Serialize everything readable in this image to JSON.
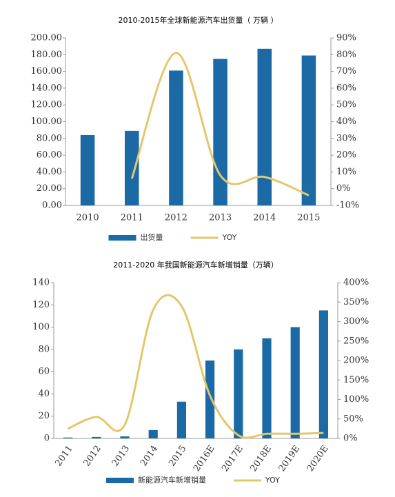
{
  "chart_data": [
    {
      "type": "bar",
      "title": "2010-2015年全球新能源汽车出货量（ 万辆 ）",
      "categories": [
        "2010",
        "2011",
        "2012",
        "2013",
        "2014",
        "2015"
      ],
      "series": [
        {
          "name": "出货量",
          "color": "#1b6aa5",
          "type": "bar",
          "values": [
            84,
            89,
            161,
            175,
            187,
            179
          ]
        },
        {
          "name": "YOY",
          "color": "#e3c76b",
          "type": "line",
          "axis": "y2",
          "values": [
            null,
            6,
            81,
            8,
            7,
            -4
          ]
        }
      ],
      "ylim": [
        0,
        200
      ],
      "yticks": [
        {
          "value": 0,
          "label": "0.00"
        },
        {
          "value": 20,
          "label": "20.00"
        },
        {
          "value": 40,
          "label": "40.00"
        },
        {
          "value": 60,
          "label": "60.00"
        },
        {
          "value": 80,
          "label": "80.00"
        },
        {
          "value": 100,
          "label": "100.00"
        },
        {
          "value": 120,
          "label": "120.00"
        },
        {
          "value": 140,
          "label": "140.00"
        },
        {
          "value": 160,
          "label": "160.00"
        },
        {
          "value": 180,
          "label": "180.00"
        },
        {
          "value": 200,
          "label": "200.00"
        }
      ],
      "y2lim": [
        -10,
        90
      ],
      "y2ticks": [
        {
          "value": -10,
          "label": "-10%"
        },
        {
          "value": 0,
          "label": "0%"
        },
        {
          "value": 10,
          "label": "10%"
        },
        {
          "value": 20,
          "label": "20%"
        },
        {
          "value": 30,
          "label": "30%"
        },
        {
          "value": 40,
          "label": "40%"
        },
        {
          "value": 50,
          "label": "50%"
        },
        {
          "value": 60,
          "label": "60%"
        },
        {
          "value": 70,
          "label": "70%"
        },
        {
          "value": 80,
          "label": "80%"
        },
        {
          "value": 90,
          "label": "90%"
        }
      ],
      "legend": "bottom"
    },
    {
      "type": "bar",
      "title": "2011-2020 年我国新能源汽车新增销量（万辆）",
      "categories": [
        "2011",
        "2012",
        "2013",
        "2014",
        "2015",
        "2016E",
        "2017E",
        "2018E",
        "2019E",
        "2020E"
      ],
      "series": [
        {
          "name": "新能源汽车新增销量",
          "color": "#1b6aa5",
          "type": "bar",
          "values": [
            0.8,
            1.3,
            1.8,
            7.5,
            33,
            70,
            80,
            90,
            100,
            115
          ]
        },
        {
          "name": "YOY",
          "color": "#e3c76b",
          "type": "line",
          "axis": "y2",
          "values": [
            25,
            55,
            35,
            330,
            340,
            110,
            8,
            12,
            12,
            14
          ]
        }
      ],
      "ylim": [
        0,
        140
      ],
      "yticks": [
        0,
        20,
        40,
        60,
        80,
        100,
        120,
        140
      ],
      "y2lim": [
        0,
        400
      ],
      "y2ticks": [
        {
          "value": 0,
          "label": "0%"
        },
        {
          "value": 50,
          "label": "50%"
        },
        {
          "value": 100,
          "label": "100%"
        },
        {
          "value": 150,
          "label": "150%"
        },
        {
          "value": 200,
          "label": "200%"
        },
        {
          "value": 250,
          "label": "250%"
        },
        {
          "value": 300,
          "label": "300%"
        },
        {
          "value": 350,
          "label": "350%"
        },
        {
          "value": 400,
          "label": "400%"
        }
      ],
      "legend": "bottom"
    }
  ]
}
